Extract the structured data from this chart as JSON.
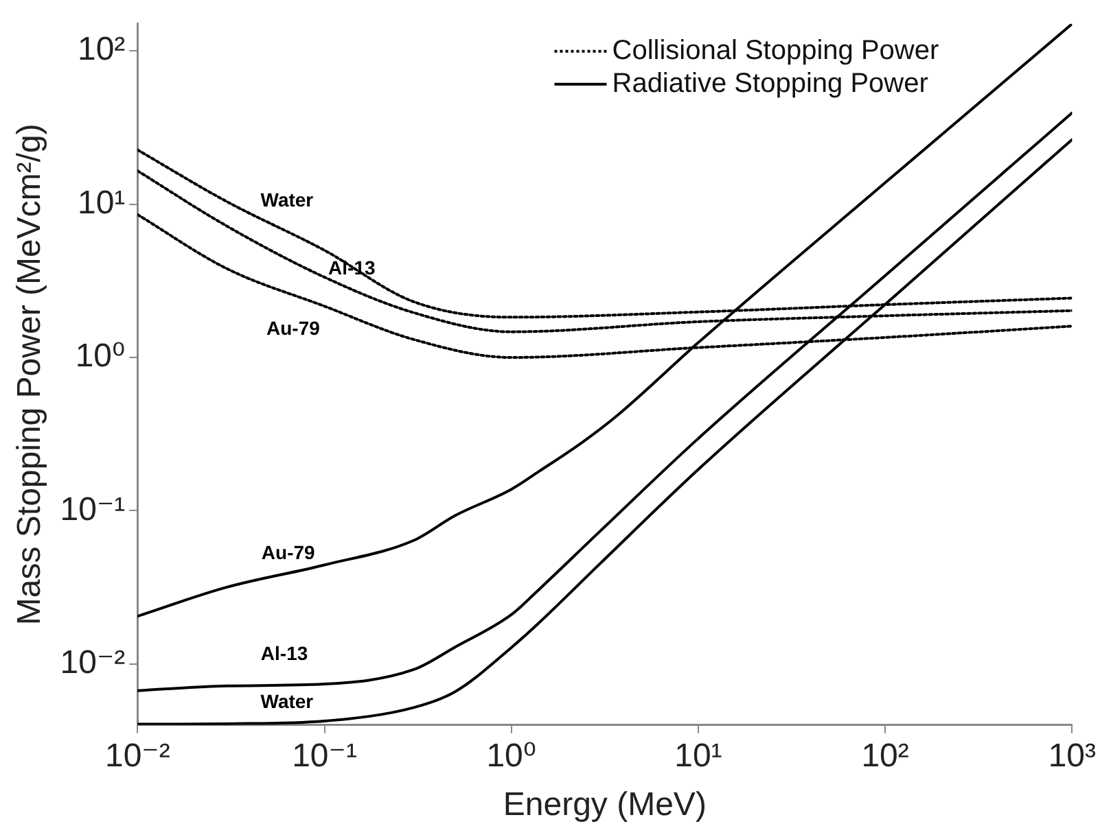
{
  "chart_data": {
    "type": "line",
    "xlabel": "Energy (MeV)",
    "ylabel": "Mass Stopping Power (MeVcm²/g)",
    "log": "xy",
    "xlim": [
      0.01,
      1000
    ],
    "ylim": [
      0.004,
      150
    ],
    "xticks": [
      {
        "value": 0.01,
        "label": "10⁻²"
      },
      {
        "value": 0.1,
        "label": "10⁻¹"
      },
      {
        "value": 1,
        "label": "10⁰"
      },
      {
        "value": 10,
        "label": "10¹"
      },
      {
        "value": 100,
        "label": "10²"
      },
      {
        "value": 1000,
        "label": "10³"
      }
    ],
    "yticks": [
      {
        "value": 0.01,
        "label": "10⁻²"
      },
      {
        "value": 0.1,
        "label": "10⁻¹"
      },
      {
        "value": 1,
        "label": "10⁰"
      },
      {
        "value": 10,
        "label": "10¹"
      },
      {
        "value": 100,
        "label": "10²"
      }
    ],
    "grid": false,
    "legend": "top right",
    "marker": "none",
    "series": [
      {
        "name": "Collisional Stopping Power",
        "color": "#000000",
        "line_style": "dotted",
        "x": [
          0.01,
          0.03,
          0.1,
          0.3,
          1,
          10,
          100,
          1000
        ],
        "values": [
          22.6,
          10.4,
          5.0,
          2.31,
          1.83,
          1.98,
          2.21,
          2.44
        ]
      },
      {
        "color": "#000000",
        "line_style": "dotted",
        "x": [
          0.01,
          0.03,
          0.1,
          0.3,
          1,
          10,
          100,
          1000
        ],
        "values": [
          16.5,
          7.2,
          3.34,
          1.96,
          1.47,
          1.71,
          1.87,
          2.02
        ]
      },
      {
        "color": "#000000",
        "line_style": "dotted",
        "x": [
          0.01,
          0.03,
          0.1,
          0.3,
          1,
          10,
          100,
          1000
        ],
        "values": [
          8.55,
          3.8,
          2.16,
          1.31,
          1.0,
          1.16,
          1.35,
          1.6
        ]
      },
      {
        "name": "Radiative Stopping Power",
        "color": "#000000",
        "line_style": "solid",
        "x": [
          0.01,
          0.03,
          0.1,
          0.3,
          0.5,
          1,
          1.4,
          3,
          10,
          100,
          1000
        ],
        "values": [
          0.00405,
          0.00408,
          0.00425,
          0.0052,
          0.0066,
          0.0128,
          0.0185,
          0.0455,
          0.186,
          2.22,
          26.4
        ]
      },
      {
        "color": "#000000",
        "line_style": "solid",
        "x": [
          0.01,
          0.03,
          0.1,
          0.3,
          0.5,
          1,
          1.4,
          3,
          10,
          100,
          1000
        ],
        "values": [
          0.0067,
          0.0072,
          0.0074,
          0.0092,
          0.0129,
          0.021,
          0.0305,
          0.074,
          0.296,
          3.42,
          39.4
        ]
      },
      {
        "color": "#000000",
        "line_style": "solid",
        "x": [
          0.01,
          0.03,
          0.1,
          0.3,
          0.5,
          1,
          1.4,
          2.4,
          3.7,
          10,
          100,
          1000
        ],
        "values": [
          0.0205,
          0.0317,
          0.0443,
          0.064,
          0.093,
          0.138,
          0.18,
          0.28,
          0.42,
          1.25,
          13.8,
          150
        ]
      }
    ],
    "annotations": [
      "Water",
      "Al-13",
      "Au-79",
      "Water",
      "Al-13",
      "Au-79"
    ]
  }
}
